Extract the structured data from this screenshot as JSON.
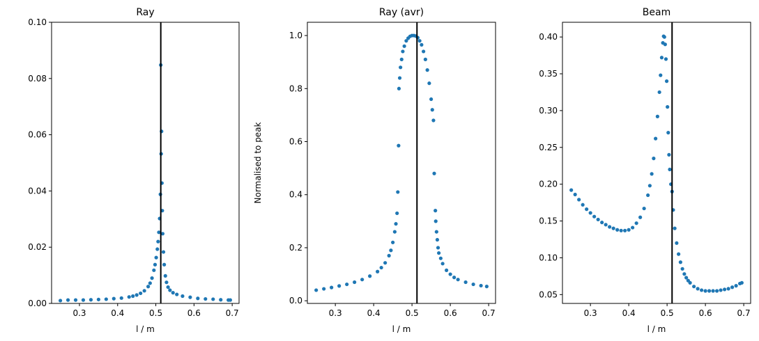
{
  "figure": {
    "background": "#ffffff",
    "marker_color": "#1f77b4",
    "vline_color": "#000000"
  },
  "chart_data": [
    {
      "type": "scatter",
      "title": "Ray",
      "xlabel": "l / m",
      "ylabel": "",
      "xlim": [
        0.227,
        0.718
      ],
      "ylim": [
        0,
        0.1
      ],
      "xticks": [
        0.3,
        0.4,
        0.5,
        0.6,
        0.7
      ],
      "xtick_labels": [
        "0.3",
        "0.4",
        "0.5",
        "0.6",
        "0.7"
      ],
      "yticks": [
        0,
        0.02,
        0.04,
        0.06,
        0.08,
        0.1
      ],
      "ytick_labels": [
        "0.00",
        "0.02",
        "0.04",
        "0.06",
        "0.08",
        "0.10"
      ],
      "vline_x": 0.513,
      "series": [
        {
          "color": "#1f77b4",
          "x": [
            0.25,
            0.27,
            0.29,
            0.31,
            0.33,
            0.35,
            0.37,
            0.39,
            0.41,
            0.43,
            0.44,
            0.45,
            0.46,
            0.47,
            0.48,
            0.485,
            0.49,
            0.495,
            0.498,
            0.501,
            0.504,
            0.506,
            0.508,
            0.51,
            0.512,
            0.513,
            0.514,
            0.515,
            0.516,
            0.517,
            0.518,
            0.52,
            0.522,
            0.525,
            0.528,
            0.532,
            0.537,
            0.545,
            0.555,
            0.57,
            0.59,
            0.61,
            0.63,
            0.65,
            0.67,
            0.69,
            0.695
          ],
          "y": [
            0.001,
            0.0012,
            0.0012,
            0.0012,
            0.0013,
            0.0014,
            0.0015,
            0.0017,
            0.0019,
            0.0023,
            0.0026,
            0.003,
            0.0036,
            0.0045,
            0.006,
            0.0072,
            0.009,
            0.0118,
            0.0138,
            0.0163,
            0.0193,
            0.022,
            0.0253,
            0.0302,
            0.0388,
            0.0848,
            0.0532,
            0.0612,
            0.0428,
            0.033,
            0.0248,
            0.0183,
            0.0138,
            0.0098,
            0.0075,
            0.0058,
            0.0047,
            0.0038,
            0.0032,
            0.0026,
            0.0022,
            0.0018,
            0.0016,
            0.0015,
            0.0013,
            0.0012,
            0.0012
          ]
        }
      ]
    },
    {
      "type": "scatter",
      "title": "Ray (avr)",
      "xlabel": "l / m",
      "ylabel": "Normalised to peak",
      "xlim": [
        0.227,
        0.718
      ],
      "ylim": [
        -0.01,
        1.05
      ],
      "xticks": [
        0.3,
        0.4,
        0.5,
        0.6,
        0.7
      ],
      "xtick_labels": [
        "0.3",
        "0.4",
        "0.5",
        "0.6",
        "0.7"
      ],
      "yticks": [
        0,
        0.2,
        0.4,
        0.6,
        0.8,
        1
      ],
      "ytick_labels": [
        "0.0",
        "0.2",
        "0.4",
        "0.6",
        "0.8",
        "1.0"
      ],
      "vline_x": 0.513,
      "series": [
        {
          "color": "#1f77b4",
          "x": [
            0.25,
            0.27,
            0.29,
            0.31,
            0.33,
            0.35,
            0.37,
            0.39,
            0.41,
            0.42,
            0.43,
            0.44,
            0.445,
            0.45,
            0.455,
            0.458,
            0.461,
            0.463,
            0.465,
            0.466,
            0.468,
            0.47,
            0.473,
            0.476,
            0.48,
            0.485,
            0.49,
            0.495,
            0.5,
            0.505,
            0.51,
            0.515,
            0.52,
            0.525,
            0.53,
            0.535,
            0.54,
            0.545,
            0.55,
            0.553,
            0.556,
            0.558,
            0.561,
            0.562,
            0.564,
            0.566,
            0.568,
            0.57,
            0.575,
            0.58,
            0.59,
            0.6,
            0.61,
            0.62,
            0.64,
            0.66,
            0.68,
            0.695
          ],
          "y": [
            0.04,
            0.045,
            0.05,
            0.056,
            0.062,
            0.07,
            0.08,
            0.093,
            0.11,
            0.125,
            0.143,
            0.17,
            0.19,
            0.22,
            0.26,
            0.29,
            0.33,
            0.41,
            0.585,
            0.8,
            0.84,
            0.88,
            0.91,
            0.94,
            0.96,
            0.98,
            0.99,
            0.997,
            1.0,
            1.0,
            0.998,
            0.992,
            0.98,
            0.965,
            0.94,
            0.91,
            0.87,
            0.82,
            0.76,
            0.72,
            0.68,
            0.48,
            0.34,
            0.3,
            0.26,
            0.23,
            0.2,
            0.18,
            0.16,
            0.14,
            0.115,
            0.1,
            0.088,
            0.08,
            0.07,
            0.062,
            0.057,
            0.054
          ]
        }
      ]
    },
    {
      "type": "scatter",
      "title": "Beam",
      "xlabel": "l / m",
      "ylabel": "",
      "xlim": [
        0.227,
        0.718
      ],
      "ylim": [
        0.038,
        0.42
      ],
      "xticks": [
        0.3,
        0.4,
        0.5,
        0.6,
        0.7
      ],
      "xtick_labels": [
        "0.3",
        "0.4",
        "0.5",
        "0.6",
        "0.7"
      ],
      "yticks": [
        0.05,
        0.1,
        0.15,
        0.2,
        0.25,
        0.3,
        0.35,
        0.4
      ],
      "ytick_labels": [
        "0.05",
        "0.10",
        "0.15",
        "0.20",
        "0.25",
        "0.30",
        "0.35",
        "0.40"
      ],
      "vline_x": 0.513,
      "series": [
        {
          "color": "#1f77b4",
          "x": [
            0.25,
            0.26,
            0.27,
            0.28,
            0.29,
            0.3,
            0.31,
            0.32,
            0.33,
            0.34,
            0.35,
            0.36,
            0.37,
            0.38,
            0.39,
            0.4,
            0.41,
            0.42,
            0.43,
            0.44,
            0.45,
            0.455,
            0.46,
            0.465,
            0.47,
            0.475,
            0.48,
            0.483,
            0.486,
            0.489,
            0.491,
            0.493,
            0.495,
            0.497,
            0.499,
            0.501,
            0.503,
            0.505,
            0.507,
            0.51,
            0.513,
            0.516,
            0.52,
            0.525,
            0.53,
            0.535,
            0.54,
            0.545,
            0.55,
            0.555,
            0.56,
            0.57,
            0.58,
            0.59,
            0.6,
            0.61,
            0.62,
            0.63,
            0.64,
            0.65,
            0.66,
            0.67,
            0.68,
            0.69,
            0.695
          ],
          "y": [
            0.192,
            0.186,
            0.179,
            0.172,
            0.166,
            0.161,
            0.156,
            0.152,
            0.148,
            0.145,
            0.142,
            0.14,
            0.138,
            0.137,
            0.137,
            0.138,
            0.141,
            0.147,
            0.155,
            0.167,
            0.185,
            0.198,
            0.214,
            0.235,
            0.262,
            0.292,
            0.325,
            0.348,
            0.372,
            0.392,
            0.401,
            0.4,
            0.39,
            0.37,
            0.34,
            0.305,
            0.27,
            0.24,
            0.22,
            0.2,
            0.19,
            0.165,
            0.14,
            0.12,
            0.105,
            0.094,
            0.085,
            0.078,
            0.073,
            0.069,
            0.066,
            0.061,
            0.058,
            0.056,
            0.055,
            0.055,
            0.055,
            0.055,
            0.056,
            0.057,
            0.058,
            0.06,
            0.062,
            0.065,
            0.066
          ]
        }
      ]
    }
  ]
}
